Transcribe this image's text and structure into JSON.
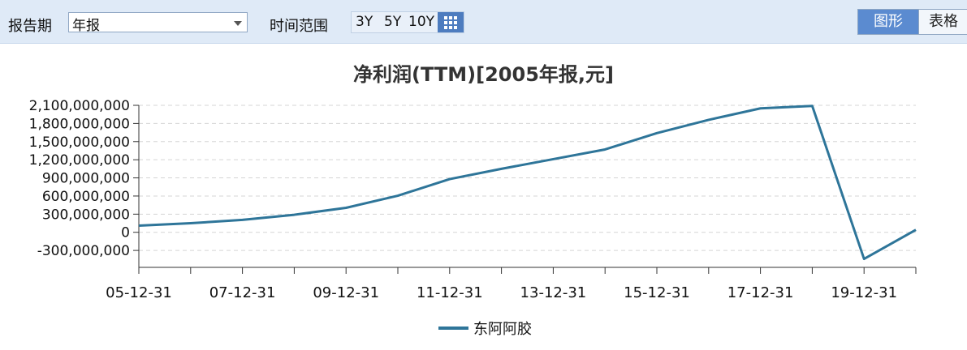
{
  "toolbar": {
    "period_label": "报告期",
    "period_value": "年报",
    "range_label": "时间范围",
    "range_buttons": [
      "3Y",
      "5Y",
      "10Y"
    ],
    "grid_icon": "grid-icon",
    "view_chart": "图形",
    "view_table": "表格"
  },
  "colors": {
    "line": "#2e7599",
    "toolbar_bg": "#dfeaf7",
    "active_button": "#5b8bd0"
  },
  "chart_data": {
    "type": "line",
    "title": "净利润(TTM)[2005年报,元]",
    "x": [
      "05-12-31",
      "06-12-31",
      "07-12-31",
      "08-12-31",
      "09-12-31",
      "10-12-31",
      "11-12-31",
      "12-12-31",
      "13-12-31",
      "14-12-31",
      "15-12-31",
      "16-12-31",
      "17-12-31",
      "18-12-31",
      "19-12-31",
      "20-12-31"
    ],
    "x_tick_labels": [
      "05-12-31",
      "07-12-31",
      "09-12-31",
      "11-12-31",
      "13-12-31",
      "15-12-31",
      "17-12-31",
      "19-12-31"
    ],
    "y_tick_labels": [
      "2,100,000,000",
      "1,800,000,000",
      "1,500,000,000",
      "1,200,000,000",
      "900,000,000",
      "600,000,000",
      "300,000,000",
      "0",
      "-300,000,000"
    ],
    "ylim": [
      -580000000,
      2100000000
    ],
    "grid": true,
    "legend_position": "bottom",
    "series": [
      {
        "name": "东阿阿胶",
        "values": [
          110000000,
          150000000,
          205000000,
          290000000,
          405000000,
          605000000,
          880000000,
          1050000000,
          1210000000,
          1370000000,
          1640000000,
          1860000000,
          2050000000,
          2090000000,
          -440000000,
          40000000
        ]
      }
    ]
  }
}
